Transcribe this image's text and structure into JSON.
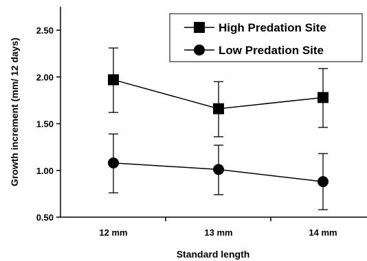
{
  "chart_data": {
    "type": "line",
    "categories": [
      "12 mm",
      "13 mm",
      "14 mm"
    ],
    "xlabel": "Standard length",
    "ylabel": "Growth increment (mm/ 12 days)",
    "ylim": [
      0.5,
      2.75
    ],
    "yticks": [
      "0.50",
      "1.00",
      "1.50",
      "2.00",
      "2.50"
    ],
    "ytick_values": [
      0.5,
      1.0,
      1.5,
      2.0,
      2.5
    ],
    "grid": false,
    "legend_position": "top-right",
    "series": [
      {
        "name": "High Predation Site",
        "marker": "square",
        "values": [
          1.97,
          1.66,
          1.78
        ],
        "err_low": [
          1.62,
          1.36,
          1.46
        ],
        "err_high": [
          2.31,
          1.95,
          2.09
        ]
      },
      {
        "name": "Low Predation Site",
        "marker": "circle",
        "values": [
          1.08,
          1.01,
          0.88
        ],
        "err_low": [
          0.76,
          0.74,
          0.58
        ],
        "err_high": [
          1.39,
          1.27,
          1.18
        ]
      }
    ]
  }
}
